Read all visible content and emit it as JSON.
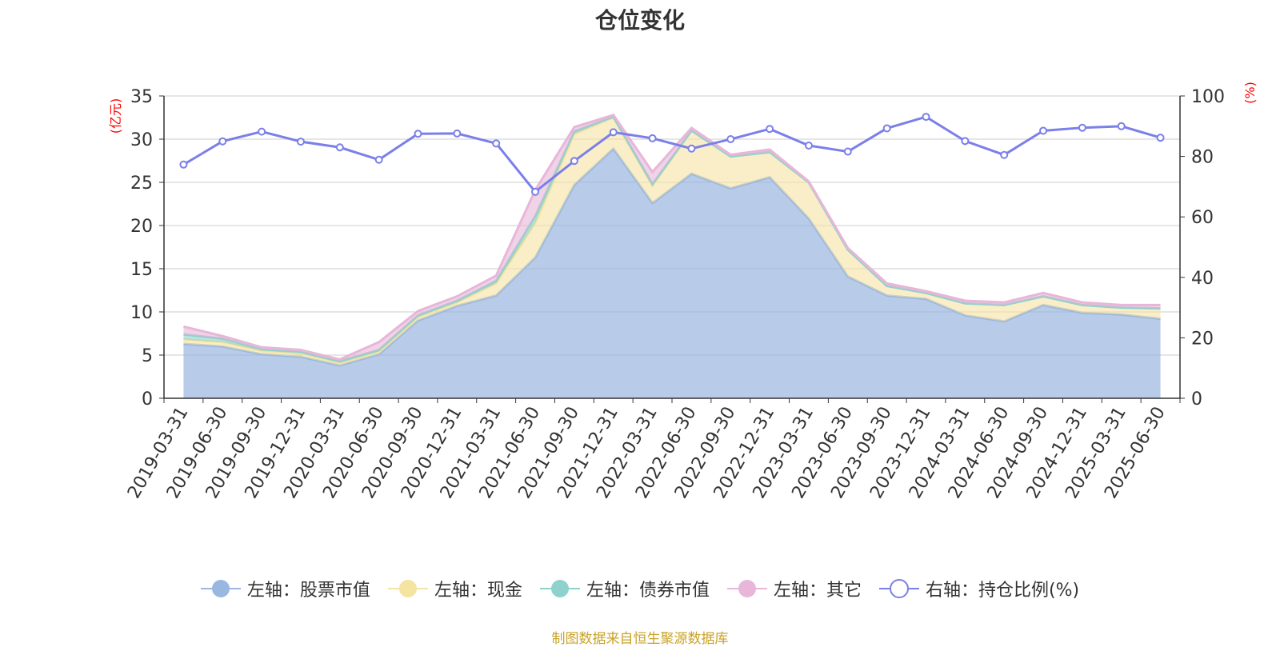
{
  "chart_data": {
    "type": "area",
    "title": "仓位变化",
    "left_axis_unit": "(亿元)",
    "right_axis_unit": "(%)",
    "left_ylim": [
      0,
      35
    ],
    "left_ticks": [
      0,
      5,
      10,
      15,
      20,
      25,
      30,
      35
    ],
    "right_ylim": [
      0,
      100
    ],
    "right_ticks": [
      0,
      20,
      40,
      60,
      80,
      100
    ],
    "grid": true,
    "legend_position": "bottom",
    "categories": [
      "2019-03-31",
      "2019-06-30",
      "2019-09-30",
      "2019-12-31",
      "2020-03-31",
      "2020-06-30",
      "2020-09-30",
      "2020-12-31",
      "2021-03-31",
      "2021-06-30",
      "2021-09-30",
      "2021-12-31",
      "2022-03-31",
      "2022-06-30",
      "2022-09-30",
      "2022-12-31",
      "2023-03-31",
      "2023-06-30",
      "2023-09-30",
      "2023-12-31",
      "2024-03-31",
      "2024-06-30",
      "2024-09-30",
      "2024-12-31",
      "2025-03-31",
      "2025-06-30"
    ],
    "series": [
      {
        "name": "左轴：股票市值",
        "axis": "left",
        "color": "#9ab7e0",
        "values": [
          6.3,
          6.0,
          5.1,
          4.8,
          3.8,
          5.1,
          9.0,
          10.7,
          11.9,
          16.3,
          24.7,
          28.9,
          22.6,
          26.0,
          24.3,
          25.6,
          20.8,
          14.1,
          11.9,
          11.5,
          9.6,
          8.9,
          10.8,
          9.9,
          9.7,
          9.2
        ]
      },
      {
        "name": "左轴：现金",
        "axis": "left",
        "color": "#f5e3a1",
        "values": [
          0.5,
          0.5,
          0.4,
          0.4,
          0.3,
          0.3,
          0.4,
          0.4,
          1.4,
          4.0,
          5.9,
          3.6,
          2.0,
          5.0,
          3.7,
          2.9,
          4.2,
          3.1,
          1.1,
          0.7,
          1.4,
          1.9,
          1.0,
          0.9,
          0.8,
          1.2
        ]
      },
      {
        "name": "左轴：债券市值",
        "axis": "left",
        "color": "#8fd1cc",
        "values": [
          0.6,
          0.4,
          0.2,
          0.2,
          0.2,
          0.2,
          0.2,
          0.2,
          0.3,
          0.8,
          0.3,
          0.1,
          0.2,
          0.0,
          0.0,
          0.0,
          0.0,
          0.0,
          0.0,
          0.0,
          0.0,
          0.0,
          0.0,
          0.0,
          0.0,
          0.0
        ]
      },
      {
        "name": "左轴：其它",
        "axis": "left",
        "color": "#e8b6d8",
        "values": [
          0.9,
          0.3,
          0.2,
          0.2,
          0.2,
          0.9,
          0.5,
          0.5,
          0.6,
          3.0,
          0.5,
          0.2,
          1.4,
          0.3,
          0.2,
          0.3,
          0.1,
          0.2,
          0.3,
          0.2,
          0.3,
          0.3,
          0.4,
          0.3,
          0.3,
          0.4
        ]
      },
      {
        "name": "右轴：持仓比例(%)",
        "axis": "right",
        "color": "#7b7fe8",
        "values": [
          77.3,
          85.0,
          88.2,
          84.9,
          83.0,
          78.9,
          87.5,
          87.6,
          84.3,
          68.3,
          78.5,
          88.0,
          86.0,
          82.6,
          85.7,
          89.1,
          83.6,
          81.6,
          89.3,
          93.1,
          85.1,
          80.5,
          88.5,
          89.5,
          90.0,
          86.2
        ]
      }
    ],
    "source": "制图数据来自恒生聚源数据库"
  }
}
